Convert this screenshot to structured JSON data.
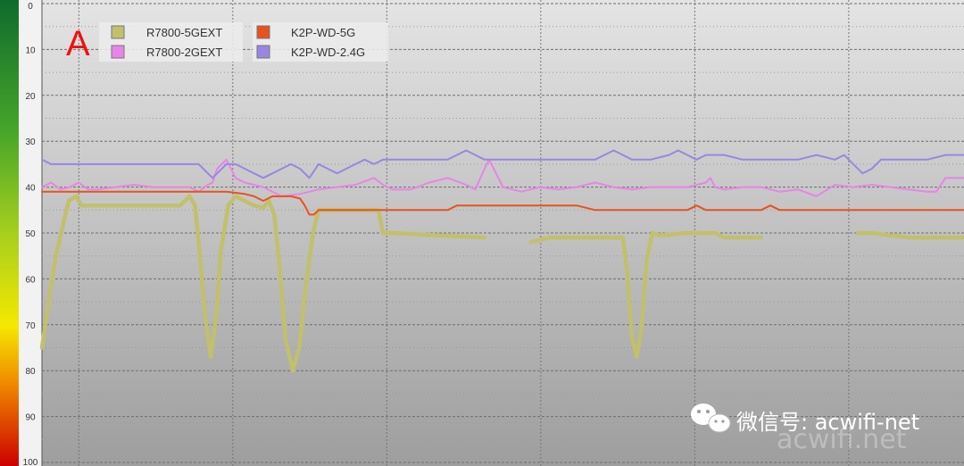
{
  "panel_label": "A",
  "watermark": "微信号: acwifi-net",
  "watermark_ghost": "acwifi.net",
  "chart_data": {
    "type": "line",
    "y_axis": {
      "min": 0,
      "max": 100,
      "inverted": true,
      "ticks": [
        "0",
        "10",
        "20",
        "30",
        "40",
        "50",
        "60",
        "70",
        "80",
        "90",
        "100"
      ]
    },
    "x_range": [
      0,
      100
    ],
    "grid": true,
    "legend_position": "top-left",
    "series": [
      {
        "name": "R7800-5GEXT",
        "color": "#c2c06a",
        "points": [
          [
            0,
            75
          ],
          [
            0.5,
            68
          ],
          [
            1.5,
            55
          ],
          [
            2.9,
            43
          ],
          [
            3.7,
            42
          ],
          [
            4.3,
            44
          ],
          [
            6,
            44
          ],
          [
            10,
            44
          ],
          [
            15,
            44
          ],
          [
            16,
            42
          ],
          [
            16.6,
            44
          ],
          [
            17,
            52
          ],
          [
            17.7,
            68
          ],
          [
            18.3,
            77
          ],
          [
            18.9,
            68
          ],
          [
            19.4,
            54
          ],
          [
            20.2,
            44
          ],
          [
            21,
            42
          ],
          [
            22,
            43
          ],
          [
            23,
            44
          ],
          [
            24,
            44.5
          ],
          [
            24.6,
            43
          ],
          [
            25.2,
            46
          ],
          [
            25.8,
            58
          ],
          [
            26.4,
            73
          ],
          [
            27.2,
            80
          ],
          [
            27.9,
            75
          ],
          [
            28.6,
            62
          ],
          [
            29.4,
            50
          ],
          [
            30,
            45
          ],
          [
            31,
            45
          ],
          [
            36.5,
            45
          ],
          [
            37,
            50
          ],
          [
            38,
            50
          ],
          [
            43,
            50.5
          ],
          [
            48,
            51
          ],
          [
            null,
            null
          ],
          [
            53,
            52
          ],
          [
            55,
            51
          ],
          [
            63,
            51
          ],
          [
            63.5,
            59
          ],
          [
            64,
            73
          ],
          [
            64.5,
            77
          ],
          [
            65,
            71
          ],
          [
            65.6,
            56
          ],
          [
            66.2,
            50
          ],
          [
            67,
            50.5
          ],
          [
            70,
            50
          ],
          [
            73,
            50
          ],
          [
            74,
            51
          ],
          [
            78,
            51
          ],
          [
            null,
            null
          ],
          [
            88.5,
            50
          ],
          [
            90,
            50
          ],
          [
            94,
            51
          ],
          [
            100,
            51
          ]
        ]
      },
      {
        "name": "R7800-2GEXT",
        "color": "#e884e8",
        "points": [
          [
            0,
            40
          ],
          [
            1,
            39
          ],
          [
            2,
            40.5
          ],
          [
            3,
            40
          ],
          [
            4,
            39
          ],
          [
            5,
            40.5
          ],
          [
            6,
            40.5
          ],
          [
            8,
            40
          ],
          [
            10,
            39.5
          ],
          [
            12,
            40
          ],
          [
            14,
            40
          ],
          [
            16,
            40
          ],
          [
            17,
            41
          ],
          [
            18,
            39.5
          ],
          [
            18.5,
            39
          ],
          [
            19,
            36
          ],
          [
            20,
            34
          ],
          [
            20.5,
            36
          ],
          [
            21,
            38
          ],
          [
            22,
            39
          ],
          [
            24,
            40
          ],
          [
            26,
            42
          ],
          [
            28,
            41.5
          ],
          [
            30,
            40.5
          ],
          [
            32,
            40
          ],
          [
            34,
            39.5
          ],
          [
            36,
            38
          ],
          [
            37,
            39.5
          ],
          [
            38,
            40.5
          ],
          [
            40,
            40.5
          ],
          [
            42,
            39
          ],
          [
            44,
            38
          ],
          [
            46,
            39.5
          ],
          [
            47,
            40.5
          ],
          [
            48,
            36
          ],
          [
            48.5,
            34
          ],
          [
            49,
            36
          ],
          [
            50,
            40
          ],
          [
            52,
            41
          ],
          [
            54,
            40
          ],
          [
            56,
            40.5
          ],
          [
            58,
            40
          ],
          [
            60,
            39
          ],
          [
            62,
            40
          ],
          [
            64,
            40.5
          ],
          [
            66,
            40
          ],
          [
            68,
            40
          ],
          [
            70,
            40
          ],
          [
            72,
            39
          ],
          [
            72.5,
            38
          ],
          [
            73,
            40
          ],
          [
            74,
            40.5
          ],
          [
            76,
            40
          ],
          [
            78,
            40
          ],
          [
            80,
            41
          ],
          [
            82,
            40.5
          ],
          [
            84,
            42
          ],
          [
            86,
            39.5
          ],
          [
            88,
            40
          ],
          [
            90,
            39.5
          ],
          [
            92,
            40
          ],
          [
            94,
            40.5
          ],
          [
            96,
            41
          ],
          [
            97,
            41
          ],
          [
            98,
            38
          ],
          [
            100,
            38
          ]
        ]
      },
      {
        "name": "K2P-WD-5G",
        "color": "#e8521e",
        "points": [
          [
            0,
            41
          ],
          [
            5,
            41
          ],
          [
            10,
            41
          ],
          [
            15,
            41
          ],
          [
            20,
            41
          ],
          [
            22,
            41.5
          ],
          [
            23,
            42
          ],
          [
            24,
            43
          ],
          [
            25,
            42
          ],
          [
            26,
            42
          ],
          [
            27,
            42
          ],
          [
            28,
            42.5
          ],
          [
            28.5,
            44
          ],
          [
            29,
            46
          ],
          [
            29.5,
            46
          ],
          [
            30,
            45
          ],
          [
            32,
            45
          ],
          [
            36,
            45
          ],
          [
            40,
            45
          ],
          [
            44,
            45
          ],
          [
            45,
            44
          ],
          [
            50,
            44
          ],
          [
            55,
            44
          ],
          [
            58,
            44
          ],
          [
            60,
            45
          ],
          [
            62,
            45
          ],
          [
            65,
            45
          ],
          [
            70,
            45
          ],
          [
            71,
            44
          ],
          [
            72,
            45
          ],
          [
            74,
            45
          ],
          [
            78,
            45
          ],
          [
            79,
            44
          ],
          [
            80,
            45
          ],
          [
            82,
            45
          ],
          [
            85,
            45
          ],
          [
            88,
            45
          ],
          [
            92,
            45
          ],
          [
            96,
            45
          ],
          [
            100,
            45
          ]
        ]
      },
      {
        "name": "K2P-WD-2.4G",
        "color": "#9a86e2",
        "points": [
          [
            0,
            34
          ],
          [
            1,
            35
          ],
          [
            2,
            35
          ],
          [
            4,
            35
          ],
          [
            6,
            35
          ],
          [
            8,
            35
          ],
          [
            10,
            35
          ],
          [
            12,
            35
          ],
          [
            14,
            35
          ],
          [
            16,
            35
          ],
          [
            17,
            35
          ],
          [
            18,
            37
          ],
          [
            18.5,
            38
          ],
          [
            19,
            37
          ],
          [
            20,
            35
          ],
          [
            21,
            35
          ],
          [
            22,
            36
          ],
          [
            23,
            37
          ],
          [
            24,
            38
          ],
          [
            25,
            37
          ],
          [
            26,
            36
          ],
          [
            27,
            35
          ],
          [
            28,
            36
          ],
          [
            29,
            38
          ],
          [
            30,
            35
          ],
          [
            31,
            36
          ],
          [
            32,
            37
          ],
          [
            33,
            36
          ],
          [
            34,
            35
          ],
          [
            35,
            34
          ],
          [
            36,
            35
          ],
          [
            37,
            34
          ],
          [
            38,
            34
          ],
          [
            40,
            34
          ],
          [
            42,
            34
          ],
          [
            44,
            34
          ],
          [
            45,
            33
          ],
          [
            46,
            32
          ],
          [
            47,
            33
          ],
          [
            48,
            34
          ],
          [
            50,
            34
          ],
          [
            52,
            34
          ],
          [
            55,
            34
          ],
          [
            58,
            34
          ],
          [
            60,
            34
          ],
          [
            61,
            33
          ],
          [
            62,
            32
          ],
          [
            63,
            33
          ],
          [
            64,
            34
          ],
          [
            66,
            34
          ],
          [
            68,
            33
          ],
          [
            69,
            32
          ],
          [
            70,
            33
          ],
          [
            71,
            34
          ],
          [
            72,
            33
          ],
          [
            74,
            33
          ],
          [
            76,
            34
          ],
          [
            78,
            34
          ],
          [
            80,
            34
          ],
          [
            82,
            34
          ],
          [
            84,
            33
          ],
          [
            86,
            34
          ],
          [
            87,
            33
          ],
          [
            88,
            35
          ],
          [
            89,
            37
          ],
          [
            90,
            36
          ],
          [
            91,
            34
          ],
          [
            92,
            34
          ],
          [
            94,
            34
          ],
          [
            96,
            34
          ],
          [
            98,
            33
          ],
          [
            100,
            33
          ]
        ]
      }
    ]
  }
}
